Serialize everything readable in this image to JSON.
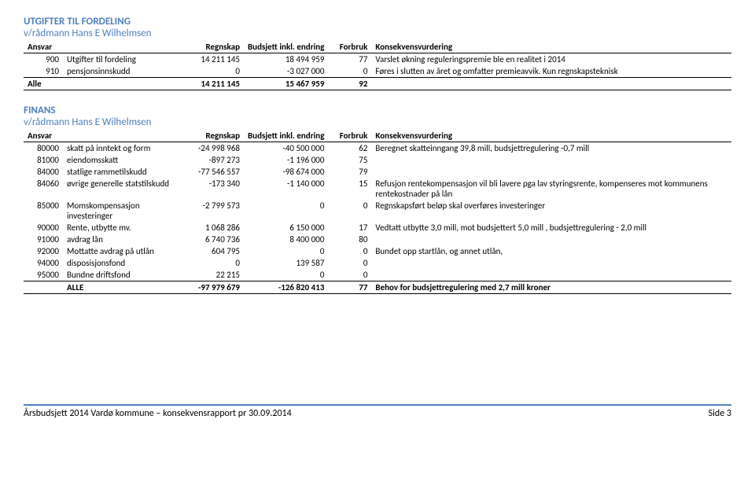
{
  "section1": {
    "title": "UTGIFTER TIL FORDELING",
    "sub": "v/rådmann Hans E Wilhelmsen",
    "headers": {
      "ansvar": "Ansvar",
      "regnskap": "Regnskap",
      "budsjett": "Budsjett inkl. endring",
      "forbruk": "Forbruk",
      "konsekvens": "Konsekvensvurdering"
    },
    "rows": [
      {
        "code": "900",
        "name": "Utgifter til fordeling",
        "reg": "14 211 145",
        "bud": "18 494 959",
        "for": "77",
        "kon": "Varslet økning reguleringspremie ble en realitet i 2014"
      },
      {
        "code": "910",
        "name": "pensjonsinnskudd",
        "reg": "0",
        "bud": "-3 027 000",
        "for": "0",
        "kon": "Føres i slutten av året og omfatter premieavvik. Kun regnskapsteknisk"
      }
    ],
    "total": {
      "code": "Alle",
      "name": "",
      "reg": "14 211 145",
      "bud": "15 467 959",
      "for": "92",
      "kon": ""
    }
  },
  "section2": {
    "title": "FINANS",
    "sub": "v/rådmann Hans E Wilhelmsen",
    "headers": {
      "ansvar": "Ansvar",
      "regnskap": "Regnskap",
      "budsjett": "Budsjett inkl. endring",
      "forbruk": "Forbruk",
      "konsekvens": "Konsekvensvurdering"
    },
    "rows": [
      {
        "code": "80000",
        "name": "skatt på inntekt og form",
        "reg": "-24 998 968",
        "bud": "-40 500 000",
        "for": "62",
        "kon": "Beregnet skatteinngang  39,8 mill, budsjettregulering -0,7 mill"
      },
      {
        "code": "81000",
        "name": "eiendomsskatt",
        "reg": "-897 273",
        "bud": "-1 196 000",
        "for": "75",
        "kon": ""
      },
      {
        "code": "84000",
        "name": "statlige rammetilskudd",
        "reg": "-77 546 557",
        "bud": "-98 674 000",
        "for": "79",
        "kon": ""
      },
      {
        "code": "84060",
        "name": "øvrige generelle statstilskudd",
        "reg": "-173 340",
        "bud": "-1 140 000",
        "for": "15",
        "kon": "Refusjon rentekompensasjon vil bli lavere pga lav styringsrente, kompenseres mot kommunens rentekostnader på lån"
      },
      {
        "code": "85000",
        "name": "Momskompensasjon investeringer",
        "reg": "-2 799 573",
        "bud": "0",
        "for": "0",
        "kon": "Regnskapsført beløp skal overføres investeringer"
      },
      {
        "code": "90000",
        "name": "Rente, utbytte  mv.",
        "reg": "1 068 286",
        "bud": "6 150 000",
        "for": "17",
        "kon": "Vedtatt utbytte 3,0 mill, mot budsjettert 5,0 mill , budsjettregulering - 2,0 mill"
      },
      {
        "code": "91000",
        "name": "avdrag lån",
        "reg": "6 740 736",
        "bud": "8 400 000",
        "for": "80",
        "kon": ""
      },
      {
        "code": "92000",
        "name": "Mottatte avdrag på utlån",
        "reg": "604 795",
        "bud": "0",
        "for": "0",
        "kon": "Bundet opp startlån, og annet utlån,"
      },
      {
        "code": "94000",
        "name": "disposisjonsfond",
        "reg": "0",
        "bud": "139 587",
        "for": "0",
        "kon": ""
      },
      {
        "code": "95000",
        "name": "Bundne driftsfond",
        "reg": "22 215",
        "bud": "0",
        "for": "0",
        "kon": ""
      }
    ],
    "total": {
      "code": "",
      "name": "ALLE",
      "reg": "-97 979 679",
      "bud": "-126 820 413",
      "for": "77",
      "kon": "Behov for budsjettregulering med 2,7 mill kroner"
    }
  },
  "footer": {
    "left": "Årsbudsjett 2014 Vardø kommune – konsekvensrapport pr 30.09.2014",
    "right": "Side 3"
  }
}
